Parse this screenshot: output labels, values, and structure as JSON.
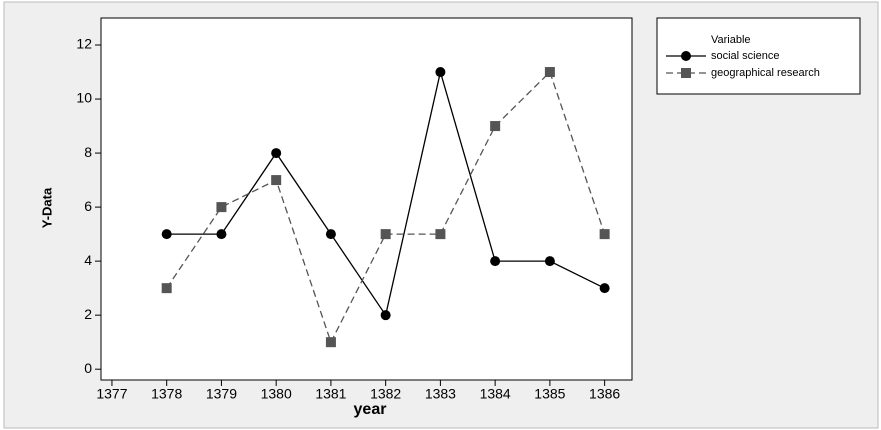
{
  "chart_data": {
    "type": "line",
    "x_label": "year",
    "y_label": "Y-Data",
    "x": [
      1378,
      1379,
      1380,
      1381,
      1382,
      1383,
      1384,
      1385,
      1386
    ],
    "series": [
      {
        "name": "social science",
        "color": "#000000",
        "marker": "circle",
        "dashed": false,
        "values": [
          5,
          5,
          8,
          5,
          2,
          11,
          4,
          4,
          3
        ]
      },
      {
        "name": "geographical research",
        "color": "#555555",
        "marker": "square",
        "dashed": true,
        "values": [
          3,
          6,
          7,
          1,
          5,
          5,
          9,
          11,
          5
        ]
      }
    ],
    "legend_title": "Variable",
    "legend": "top-right",
    "xlim": [
      1376.8,
      1386.5
    ],
    "xticks": [
      1377,
      1378,
      1379,
      1380,
      1381,
      1382,
      1383,
      1384,
      1385,
      1386
    ],
    "ylim": [
      -0.4,
      13
    ],
    "yticks": [
      0,
      2,
      4,
      6,
      8,
      10,
      12
    ]
  }
}
